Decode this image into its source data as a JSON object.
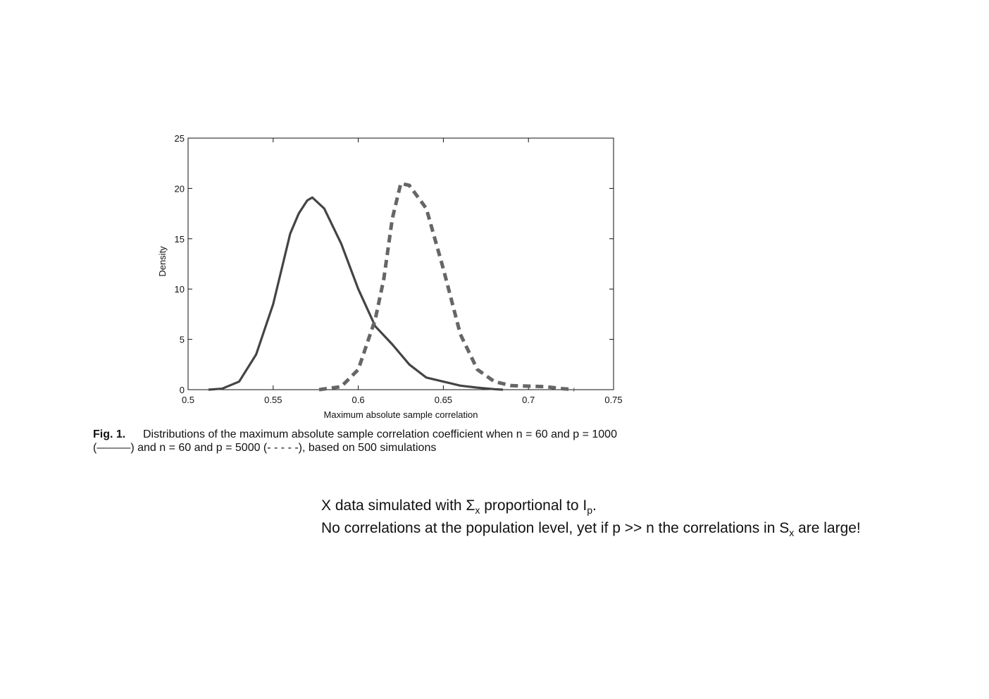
{
  "chart_data": {
    "type": "line",
    "xlabel": "Maximum absolute sample correlation",
    "ylabel": "Density",
    "xlim": [
      0.5,
      0.75
    ],
    "xticks": [
      0.5,
      0.55,
      0.6,
      0.65,
      0.7,
      0.75
    ],
    "ylim": [
      0,
      25
    ],
    "yticks": [
      0,
      5,
      10,
      15,
      20,
      25
    ],
    "grid": false,
    "series": [
      {
        "color": "#444444",
        "dash": false,
        "x": [
          0.512,
          0.52,
          0.53,
          0.54,
          0.55,
          0.555,
          0.56,
          0.565,
          0.57,
          0.573,
          0.58,
          0.59,
          0.6,
          0.61,
          0.62,
          0.63,
          0.64,
          0.65,
          0.66,
          0.67,
          0.68,
          0.685
        ],
        "values": [
          0,
          0.1,
          0.8,
          3.5,
          8.5,
          12,
          15.5,
          17.5,
          18.8,
          19.1,
          18,
          14.5,
          10,
          6.3,
          4.5,
          2.5,
          1.2,
          0.8,
          0.4,
          0.2,
          0.05,
          0
        ]
      },
      {
        "color": "#666666",
        "dash": true,
        "x": [
          0.577,
          0.59,
          0.6,
          0.61,
          0.615,
          0.62,
          0.625,
          0.63,
          0.64,
          0.65,
          0.66,
          0.67,
          0.68,
          0.69,
          0.7,
          0.71,
          0.72,
          0.727
        ],
        "values": [
          0,
          0.3,
          2,
          7,
          11,
          17,
          20.5,
          20.3,
          18,
          12,
          5.5,
          2,
          0.8,
          0.4,
          0.35,
          0.3,
          0.1,
          0
        ]
      }
    ]
  },
  "caption": {
    "label": "Fig. 1.",
    "line1": "Distributions of the maximum absolute sample correlation coefficient when n = 60 and p = 1000",
    "line2": "(———) and n = 60 and p = 5000 (- - - - -), based on 500 simulations"
  },
  "note": {
    "line1": [
      "X data simulated with Σ",
      "x",
      " proportional to I",
      "p",
      "."
    ],
    "line2": [
      "No correlations at the population level, yet if p >> n the correlations in S",
      "x",
      " are large!"
    ]
  }
}
